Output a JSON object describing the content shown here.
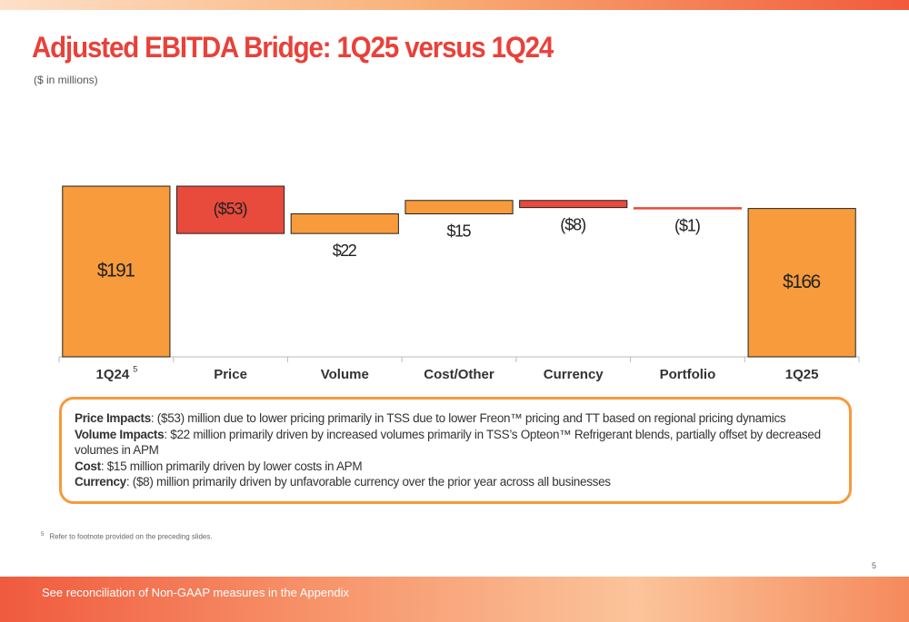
{
  "header": {
    "title": "Adjusted EBITDA Bridge: 1Q25 versus 1Q24",
    "subtitle": "($ in millions)"
  },
  "chart_data": {
    "type": "waterfall",
    "categories": [
      "1Q24",
      "Price",
      "Volume",
      "Cost/Other",
      "Currency",
      "Portfolio",
      "1Q25"
    ],
    "category_marks": [
      "5",
      null,
      null,
      null,
      null,
      null,
      null
    ],
    "values": [
      191,
      -53,
      22,
      15,
      -8,
      -1,
      166
    ],
    "value_labels": [
      "$191",
      "($53)",
      "$22",
      "$15",
      "($8)",
      "($1)",
      "$166"
    ],
    "totals": [
      true,
      false,
      false,
      false,
      false,
      false,
      true
    ],
    "colors": {
      "increase": "#f89b3c",
      "decrease": "#e84a3b",
      "total": "#f89b3c"
    }
  },
  "notes": [
    {
      "label": "Price Impacts",
      "text": ": ($53) million due to lower pricing primarily in TSS due to lower Freon™ pricing and TT based on regional pricing dynamics"
    },
    {
      "label": "Volume Impacts",
      "text": ": $22 million primarily driven by increased volumes primarily in TSS’s Opteon™ Refrigerant blends, partially offset by decreased volumes in APM"
    },
    {
      "label": "Cost",
      "text": ": $15 million primarily driven by lower costs in APM"
    },
    {
      "label": "Currency",
      "text": ": ($8) million primarily driven by unfavorable currency over the prior year across all businesses"
    }
  ],
  "footnote": {
    "marker": "5",
    "text": "Refer to footnote provided on the preceding slides."
  },
  "page_number": "5",
  "footer": {
    "text": "See reconciliation of Non-GAAP measures in the Appendix"
  }
}
